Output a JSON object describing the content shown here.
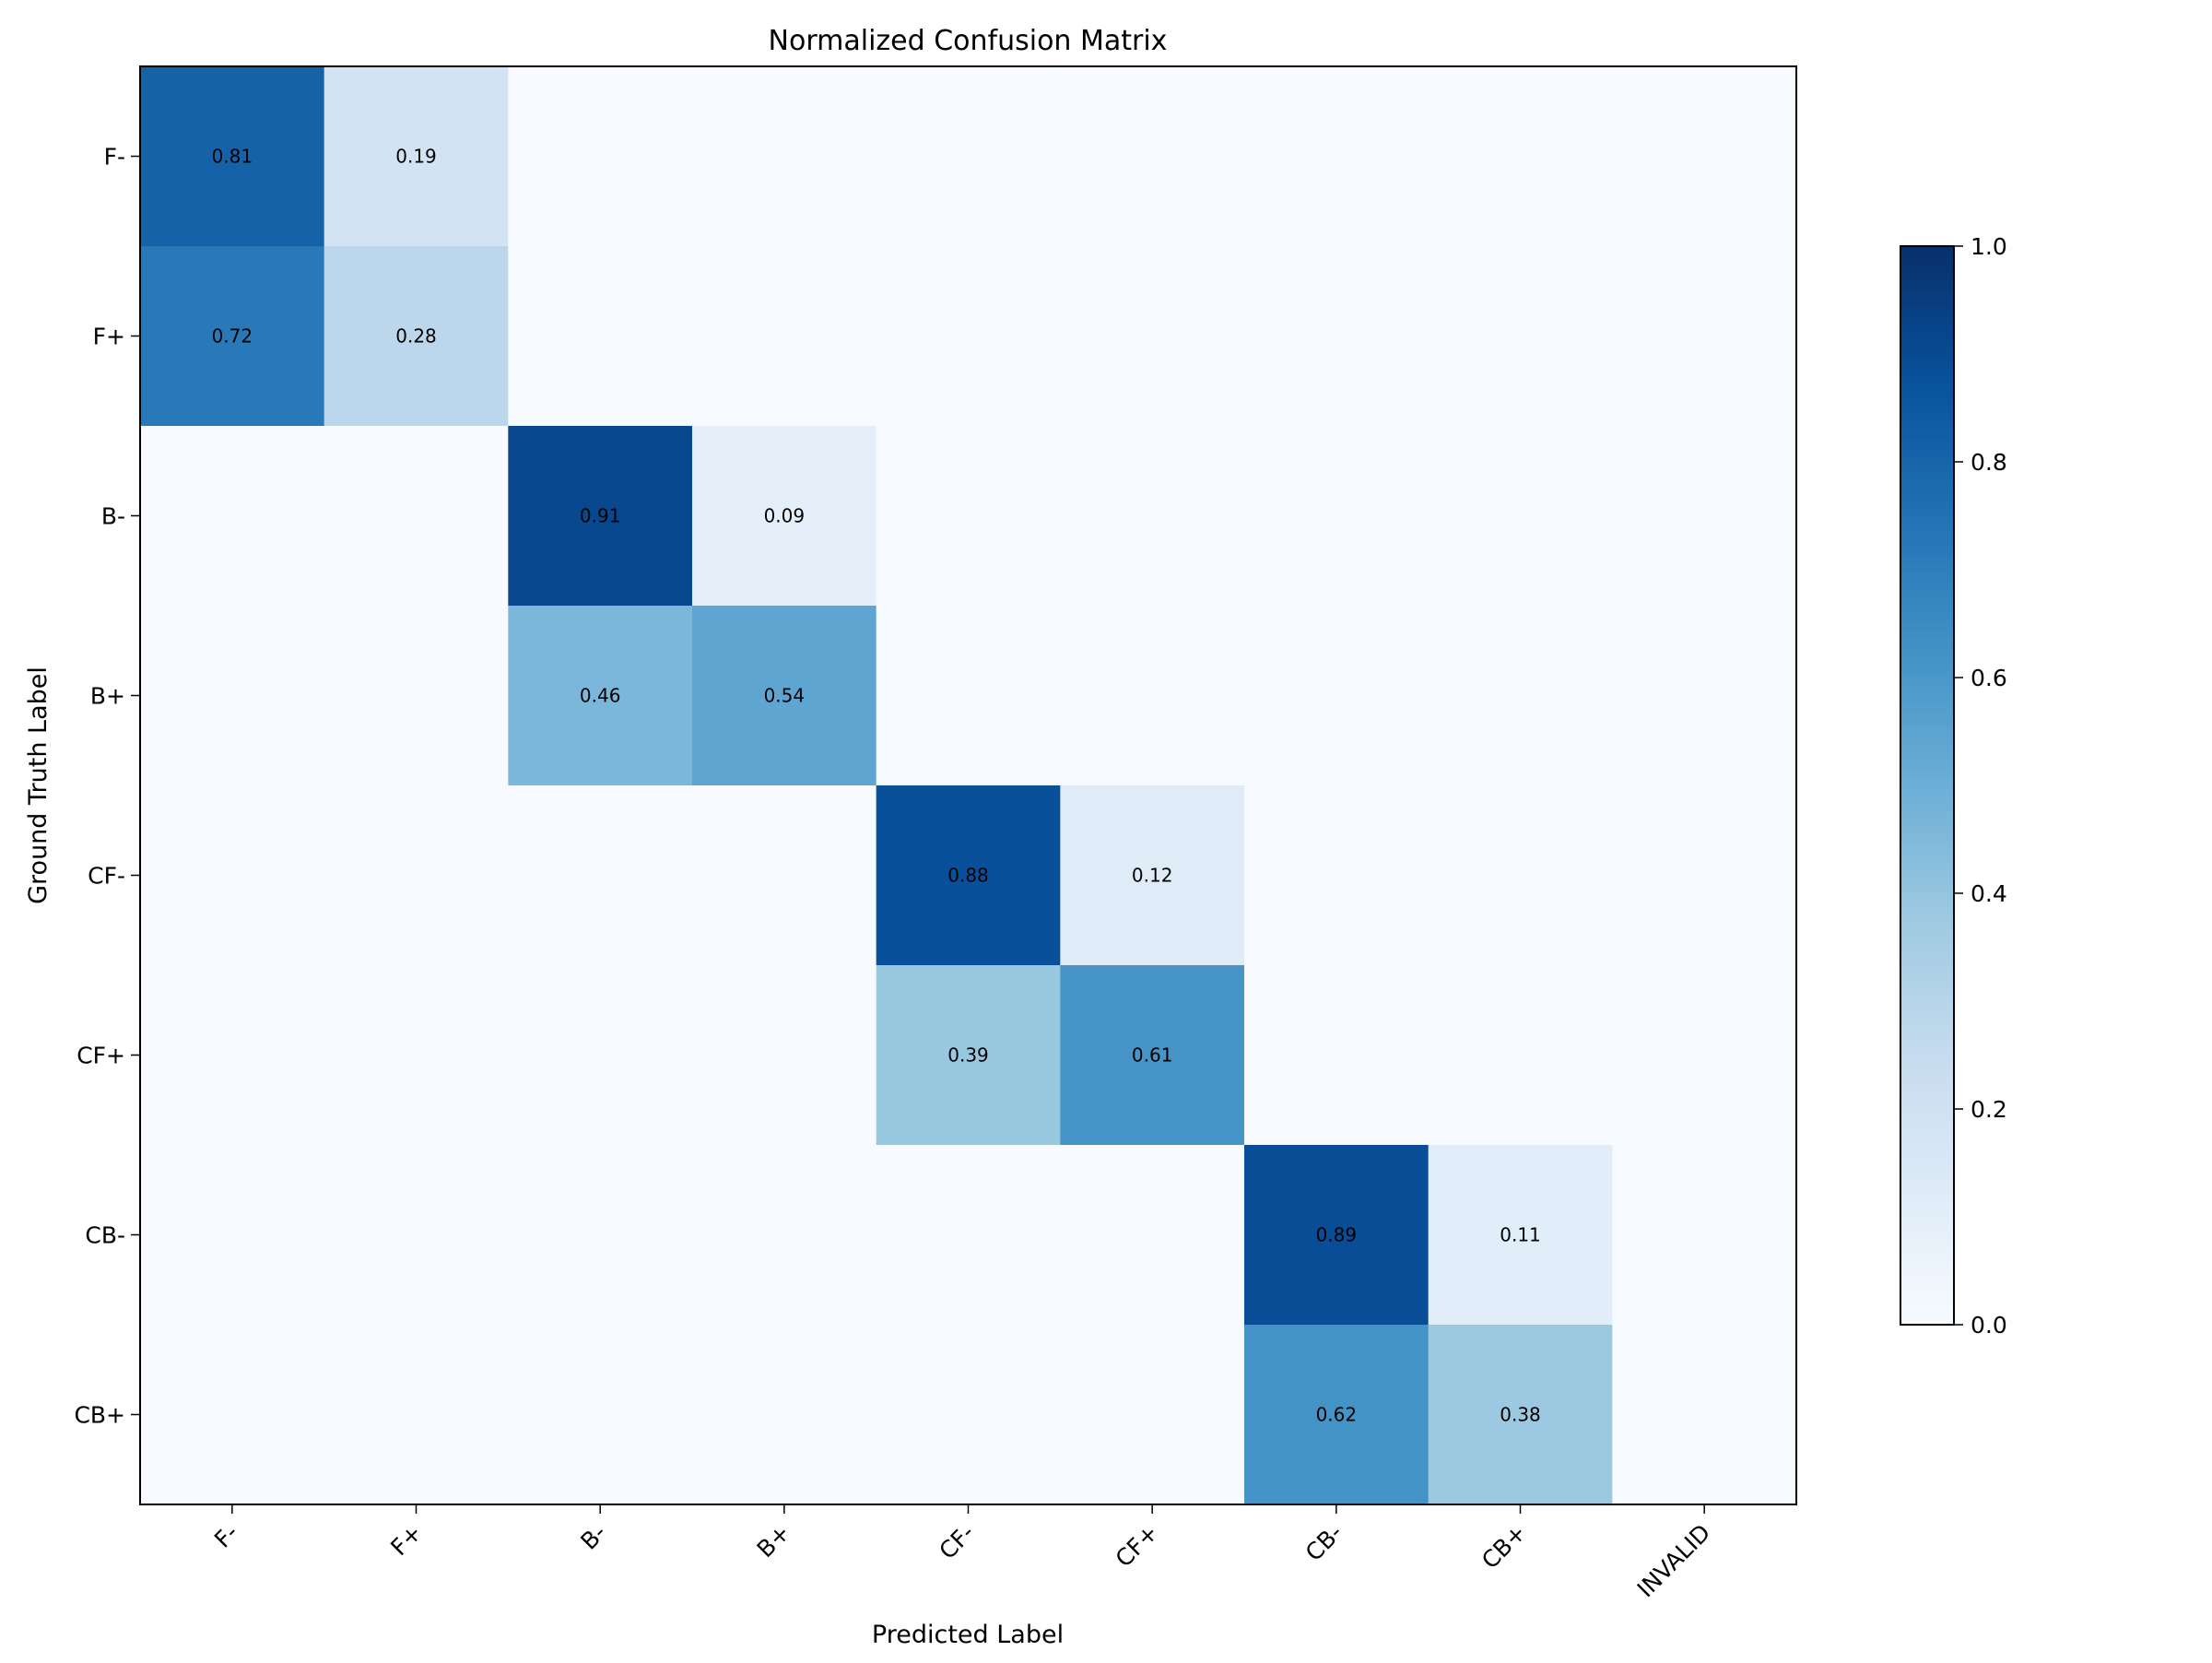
{
  "chart_data": {
    "type": "heatmap",
    "title": "Normalized Confusion Matrix",
    "xlabel": "Predicted Label",
    "ylabel": "Ground Truth Label",
    "row_labels": [
      "F-",
      "F+",
      "B-",
      "B+",
      "CF-",
      "CF+",
      "CB-",
      "CB+"
    ],
    "col_labels": [
      "F-",
      "F+",
      "B-",
      "B+",
      "CF-",
      "CF+",
      "CB-",
      "CB+",
      "INVALID"
    ],
    "matrix": [
      [
        0.81,
        0.19,
        0,
        0,
        0,
        0,
        0,
        0,
        0
      ],
      [
        0.72,
        0.28,
        0,
        0,
        0,
        0,
        0,
        0,
        0
      ],
      [
        0,
        0,
        0.91,
        0.09,
        0,
        0,
        0,
        0,
        0
      ],
      [
        0,
        0,
        0.46,
        0.54,
        0,
        0,
        0,
        0,
        0
      ],
      [
        0,
        0,
        0,
        0,
        0.88,
        0.12,
        0,
        0,
        0
      ],
      [
        0,
        0,
        0,
        0,
        0.39,
        0.61,
        0,
        0,
        0
      ],
      [
        0,
        0,
        0,
        0,
        0,
        0,
        0.89,
        0.11,
        0
      ],
      [
        0,
        0,
        0,
        0,
        0,
        0,
        0.62,
        0.38,
        0
      ]
    ],
    "colorscale": "Blues",
    "colorbar": {
      "range": [
        0.0,
        1.0
      ],
      "ticks": [
        "0.0",
        "0.2",
        "0.4",
        "0.6",
        "0.8",
        "1.0"
      ]
    },
    "annotate_nonzero": true
  }
}
